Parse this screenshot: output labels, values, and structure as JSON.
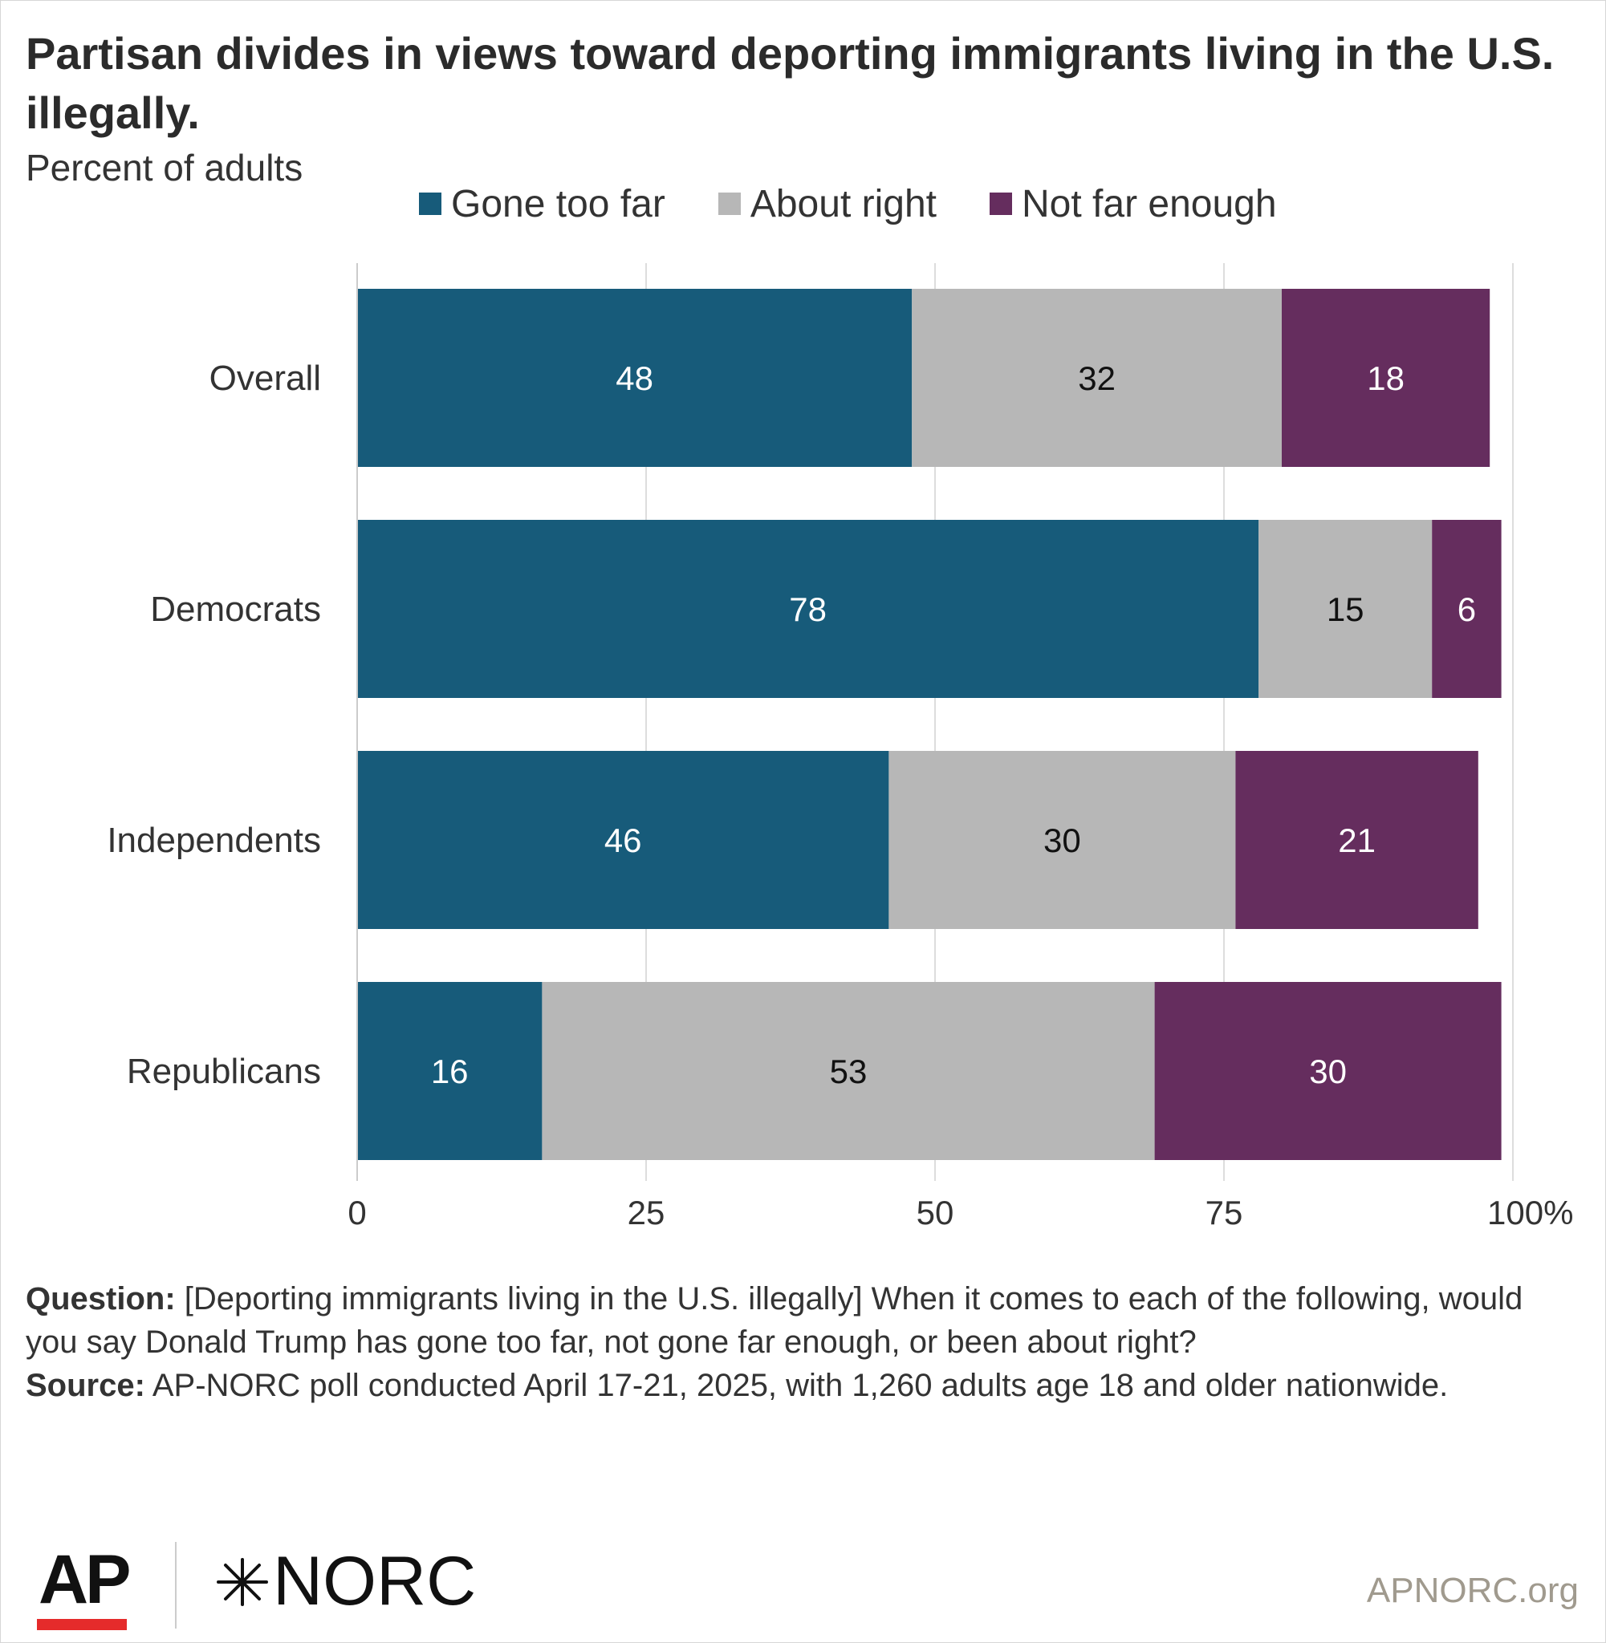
{
  "title": "Partisan divides in views toward deporting immigrants living in the U.S. illegally.",
  "subtitle": "Percent of adults",
  "legend": [
    {
      "label": "Gone too far",
      "color": "#175b7a"
    },
    {
      "label": "About right",
      "color": "#b7b7b7"
    },
    {
      "label": "Not far enough",
      "color": "#652d5e"
    }
  ],
  "chart_data": {
    "type": "bar",
    "orientation": "horizontal",
    "stacked": true,
    "title": "Partisan divides in views toward deporting immigrants living in the U.S. illegally.",
    "subtitle": "Percent of adults",
    "categories": [
      "Overall",
      "Democrats",
      "Independents",
      "Republicans"
    ],
    "series": [
      {
        "name": "Gone too far",
        "color": "#175b7a",
        "label_color": "#ffffff",
        "values": [
          48,
          78,
          46,
          16
        ]
      },
      {
        "name": "About right",
        "color": "#b7b7b7",
        "label_color": "#111111",
        "values": [
          32,
          15,
          30,
          53
        ]
      },
      {
        "name": "Not far enough",
        "color": "#652d5e",
        "label_color": "#ffffff",
        "values": [
          18,
          6,
          21,
          30
        ]
      }
    ],
    "xlim": [
      0,
      100
    ],
    "xticks": [
      0,
      25,
      50,
      75,
      100
    ],
    "xtick_labels": [
      "0",
      "25",
      "50",
      "75",
      "100%"
    ],
    "grid": true,
    "legend_position": "top"
  },
  "footnote": {
    "question_label": "Question:",
    "question_text": " [Deporting immigrants living in the U.S. illegally] When it comes to each of the following, would you say Donald Trump has gone too far, not gone far enough, or been about right?",
    "source_label": "Source:",
    "source_text": " AP-NORC poll conducted April 17-21, 2025, with 1,260 adults age 18 and older nationwide."
  },
  "branding": {
    "ap_logo": "AP",
    "norc_logo": "NORC",
    "norc_icon": "star-burst-icon",
    "site": "APNORC.org"
  }
}
